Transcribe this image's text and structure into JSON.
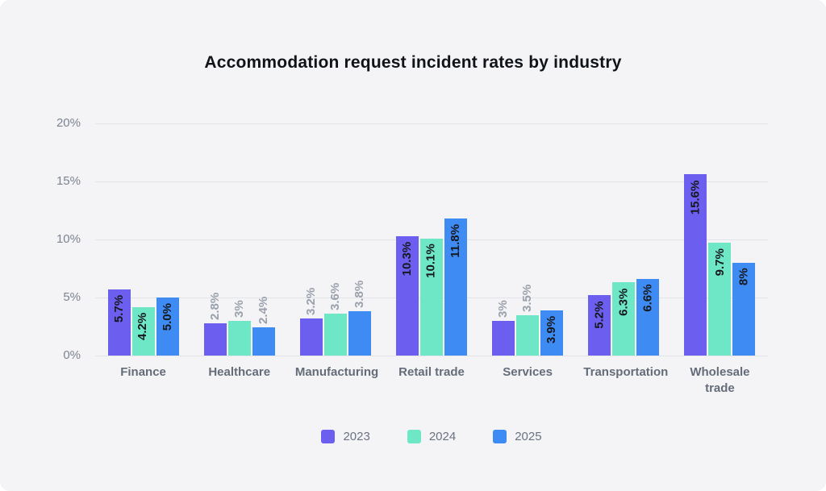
{
  "title": "Accommodation request incident rates by industry",
  "chart_data": {
    "type": "bar",
    "title": "Accommodation request incident rates by industry",
    "categories": [
      "Finance",
      "Healthcare",
      "Manufacturing",
      "Retail trade",
      "Services",
      "Transportation",
      "Wholesale trade"
    ],
    "series": [
      {
        "name": "2023",
        "color": "#6c5ff0",
        "values": [
          5.7,
          2.8,
          3.2,
          10.3,
          3.0,
          5.2,
          15.6
        ],
        "labels": [
          "5.7%",
          "2.8%",
          "3.2%",
          "10.3%",
          "3%",
          "5.2%",
          "15.6%"
        ]
      },
      {
        "name": "2024",
        "color": "#6ee7c6",
        "values": [
          4.2,
          3.0,
          3.6,
          10.1,
          3.5,
          6.3,
          9.7
        ],
        "labels": [
          "4.2%",
          "3%",
          "3.6%",
          "10.1%",
          "3.5%",
          "6.3%",
          "9.7%"
        ]
      },
      {
        "name": "2025",
        "color": "#3e8bf4",
        "values": [
          5.0,
          2.4,
          3.8,
          11.8,
          3.9,
          6.6,
          8.0
        ],
        "labels": [
          "5.0%",
          "2.4%",
          "3.8%",
          "11.8%",
          "3.9%",
          "6.6%",
          "8%"
        ]
      }
    ],
    "xlabel": "",
    "ylabel": "",
    "y_ticks": [
      "0%",
      "5%",
      "10%",
      "15%",
      "20%"
    ],
    "y_tick_values": [
      0,
      5,
      10,
      15,
      20
    ],
    "ylim": [
      0,
      20
    ],
    "grid": true,
    "legend_position": "bottom",
    "value_label_rotation": -90
  },
  "colors": {
    "panel_background": "#f4f4f6",
    "gridline": "#e3e4e9",
    "y_tick_text": "#7c8391",
    "category_text": "#656c79",
    "value_label_inside": "#16181d",
    "value_label_outside": "#9aa1ac",
    "legend_text": "#6b7280",
    "title_text": "#101318"
  }
}
